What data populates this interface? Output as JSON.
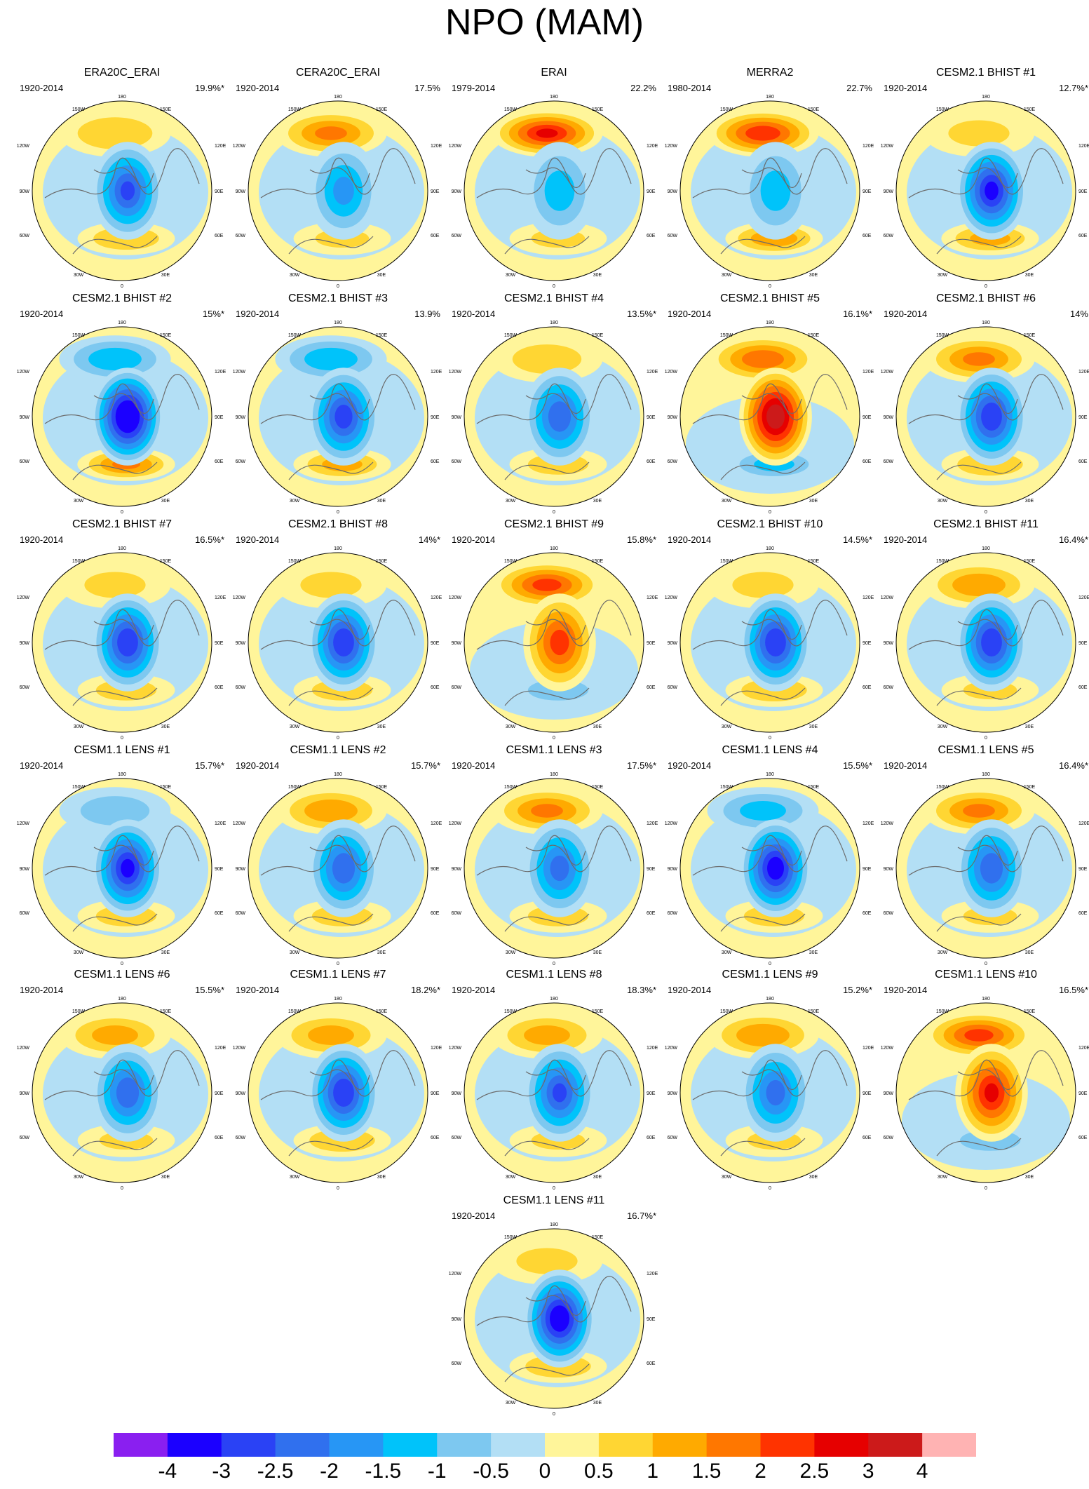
{
  "figure": {
    "title": "NPO (MAM)",
    "degree_labels": {
      "top": "180",
      "upper_left": "150W",
      "upper_right": "150E",
      "left_upper": "120W",
      "right_upper": "120E",
      "left": "90W",
      "right": "90E",
      "left_lower": "60W",
      "right_lower": "60E",
      "lower_left": "30W",
      "lower_right": "30E",
      "bottom": "0"
    }
  },
  "chart_data": {
    "type": "heatmap",
    "projection": "north polar stereographic",
    "colorbar": {
      "levels": [
        -4,
        -3,
        -2.5,
        -2,
        -1.5,
        -1,
        -0.5,
        0,
        0.5,
        1,
        1.5,
        2,
        2.5,
        3,
        4
      ],
      "labels": [
        "-4",
        "-3",
        "-2.5",
        "-2",
        "-1.5",
        "-1",
        "-0.5",
        "0",
        "0.5",
        "1",
        "1.5",
        "2",
        "2.5",
        "3",
        "4"
      ],
      "colors": [
        "#8a1ff0",
        "#1b00ff",
        "#2a42f5",
        "#3070ee",
        "#2796f5",
        "#00c3fa",
        "#7dc8f0",
        "#b3dff5",
        "#fff59a",
        "#ffd633",
        "#ffaa00",
        "#ff7700",
        "#ff3300",
        "#e60000",
        "#cc1a1a",
        "#ffb3b3"
      ]
    },
    "panels": [
      {
        "name": "ERA20C_ERAI",
        "period": "1920-2014",
        "variance": "19.9%*",
        "pacific": 1.0,
        "arctic": -2.6,
        "atlantic": 1.0
      },
      {
        "name": "CERA20C_ERAI",
        "period": "1920-2014",
        "variance": "17.5%",
        "pacific": 1.6,
        "arctic": -1.6,
        "atlantic": 0.6
      },
      {
        "name": "ERAI",
        "period": "1979-2014",
        "variance": "22.2%",
        "pacific": 2.6,
        "arctic": -1.2,
        "atlantic": 0.6
      },
      {
        "name": "MERRA2",
        "period": "1980-2014",
        "variance": "22.7%",
        "pacific": 2.4,
        "arctic": -1.2,
        "atlantic": 1.4
      },
      {
        "name": "CESM2.1 BHIST #1",
        "period": "1920-2014",
        "variance": "12.7%*",
        "pacific": 0.6,
        "arctic": -3.2,
        "atlantic": 1.2
      },
      {
        "name": "CESM2.1 BHIST #2",
        "period": "1920-2014",
        "variance": "15%*",
        "pacific": -1.4,
        "arctic": -4.0,
        "atlantic": 1.6
      },
      {
        "name": "CESM2.1 BHIST #3",
        "period": "1920-2014",
        "variance": "13.9%",
        "pacific": -1.4,
        "arctic": -2.8,
        "atlantic": 1.2
      },
      {
        "name": "CESM2.1 BHIST #4",
        "period": "1920-2014",
        "variance": "13.5%*",
        "pacific": 0.8,
        "arctic": -2.4,
        "atlantic": 0.8
      },
      {
        "name": "CESM2.1 BHIST #5",
        "period": "1920-2014",
        "variance": "16.1%*",
        "pacific": 1.9,
        "arctic": 3.5,
        "atlantic": -1.2
      },
      {
        "name": "CESM2.1 BHIST #6",
        "period": "1920-2014",
        "variance": "14%",
        "pacific": 1.6,
        "arctic": -3.0,
        "atlantic": 1.0
      },
      {
        "name": "CESM2.1 BHIST #7",
        "period": "1920-2014",
        "variance": "16.5%*",
        "pacific": 0.6,
        "arctic": -3.0,
        "atlantic": 0.8
      },
      {
        "name": "CESM2.1 BHIST #8",
        "period": "1920-2014",
        "variance": "14%*",
        "pacific": 0.6,
        "arctic": -3.0,
        "atlantic": 0.8
      },
      {
        "name": "CESM2.1 BHIST #9",
        "period": "1920-2014",
        "variance": "15.8%*",
        "pacific": 2.2,
        "arctic": 2.2,
        "atlantic": -0.8
      },
      {
        "name": "CESM2.1 BHIST #10",
        "period": "1920-2014",
        "variance": "14.5%*",
        "pacific": 0.6,
        "arctic": -3.0,
        "atlantic": 1.0
      },
      {
        "name": "CESM2.1 BHIST #11",
        "period": "1920-2014",
        "variance": "16.4%*",
        "pacific": 1.4,
        "arctic": -3.0,
        "atlantic": 0.6
      },
      {
        "name": "CESM1.1 LENS #1",
        "period": "1920-2014",
        "variance": "15.7%*",
        "pacific": -0.8,
        "arctic": -3.2,
        "atlantic": 0.8
      },
      {
        "name": "CESM1.1 LENS #2",
        "period": "1920-2014",
        "variance": "15.7%*",
        "pacific": 1.4,
        "arctic": -2.4,
        "atlantic": 0.8
      },
      {
        "name": "CESM1.1 LENS #3",
        "period": "1920-2014",
        "variance": "17.5%*",
        "pacific": 1.6,
        "arctic": -2.2,
        "atlantic": 0.8
      },
      {
        "name": "CESM1.1 LENS #4",
        "period": "1920-2014",
        "variance": "15.5%*",
        "pacific": -1.2,
        "arctic": -3.4,
        "atlantic": 0.8
      },
      {
        "name": "CESM1.1 LENS #5",
        "period": "1920-2014",
        "variance": "16.4%*",
        "pacific": 1.6,
        "arctic": -2.4,
        "atlantic": 0.6
      },
      {
        "name": "CESM1.1 LENS #6",
        "period": "1920-2014",
        "variance": "15.5%*",
        "pacific": 1.2,
        "arctic": -2.4,
        "atlantic": 0.6
      },
      {
        "name": "CESM1.1 LENS #7",
        "period": "1920-2014",
        "variance": "18.2%*",
        "pacific": 1.2,
        "arctic": -3.0,
        "atlantic": 1.0
      },
      {
        "name": "CESM1.1 LENS #8",
        "period": "1920-2014",
        "variance": "18.3%*",
        "pacific": 1.2,
        "arctic": -2.6,
        "atlantic": 0.6
      },
      {
        "name": "CESM1.1 LENS #9",
        "period": "1920-2014",
        "variance": "15.2%*",
        "pacific": 1.4,
        "arctic": -2.2,
        "atlantic": 0.6
      },
      {
        "name": "CESM1.1 LENS #10",
        "period": "1920-2014",
        "variance": "16.5%*",
        "pacific": 2.2,
        "arctic": 2.6,
        "atlantic": -0.8
      },
      {
        "name": "CESM1.1 LENS #11",
        "period": "1920-2014",
        "variance": "16.7%*",
        "pacific": 0.6,
        "arctic": -3.6,
        "atlantic": 1.0
      }
    ]
  }
}
